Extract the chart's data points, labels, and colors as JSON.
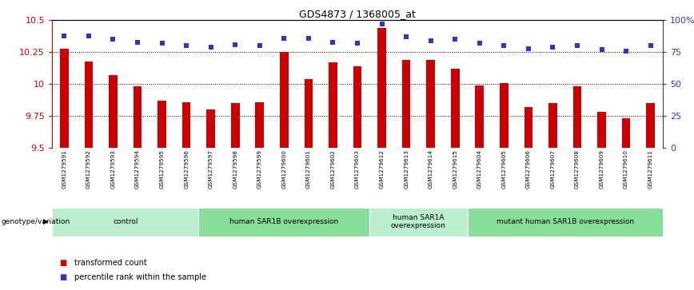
{
  "title": "GDS4873 / 1368005_at",
  "samples": [
    "GSM1279591",
    "GSM1279592",
    "GSM1279593",
    "GSM1279594",
    "GSM1279595",
    "GSM1279596",
    "GSM1279597",
    "GSM1279598",
    "GSM1279599",
    "GSM1279600",
    "GSM1279601",
    "GSM1279602",
    "GSM1279603",
    "GSM1279612",
    "GSM1279613",
    "GSM1279614",
    "GSM1279615",
    "GSM1279604",
    "GSM1279605",
    "GSM1279606",
    "GSM1279607",
    "GSM1279608",
    "GSM1279609",
    "GSM1279610",
    "GSM1279611"
  ],
  "bar_values": [
    10.28,
    10.18,
    10.07,
    9.98,
    9.87,
    9.86,
    9.8,
    9.85,
    9.86,
    10.25,
    10.04,
    10.17,
    10.14,
    10.44,
    10.19,
    10.19,
    10.12,
    9.99,
    10.01,
    9.82,
    9.85,
    9.98,
    9.78,
    9.73,
    9.85
  ],
  "percentile_values": [
    88,
    88,
    85,
    83,
    82,
    80,
    79,
    81,
    80,
    86,
    86,
    83,
    82,
    97,
    87,
    84,
    85,
    82,
    80,
    78,
    79,
    80,
    77,
    76,
    80
  ],
  "bar_color": "#cc0000",
  "dot_color": "#3333cc",
  "ymin": 9.5,
  "ymax": 10.5,
  "yticks": [
    9.5,
    9.75,
    10.0,
    10.25,
    10.5
  ],
  "ytick_labels": [
    "9.5",
    "9.75",
    "10",
    "10.25",
    "10.5"
  ],
  "right_yticks": [
    0,
    25,
    50,
    75,
    100
  ],
  "right_yticklabels": [
    "0",
    "25",
    "50",
    "75",
    "100%"
  ],
  "grid_lines": [
    9.75,
    10.0,
    10.25
  ],
  "groups": [
    {
      "label": "control",
      "start": 0,
      "end": 5,
      "color": "#bbeecc"
    },
    {
      "label": "human SAR1B overexpression",
      "start": 6,
      "end": 12,
      "color": "#88dd99"
    },
    {
      "label": "human SAR1A\noverexpression",
      "start": 13,
      "end": 16,
      "color": "#bbeecc"
    },
    {
      "label": "mutant human SAR1B overexpression",
      "start": 17,
      "end": 24,
      "color": "#88dd99"
    }
  ],
  "group_label": "genotype/variation",
  "xtick_bg_color": "#c8c8c8",
  "legend_items": [
    {
      "label": "transformed count",
      "color": "#cc0000"
    },
    {
      "label": "percentile rank within the sample",
      "color": "#3333cc"
    }
  ]
}
